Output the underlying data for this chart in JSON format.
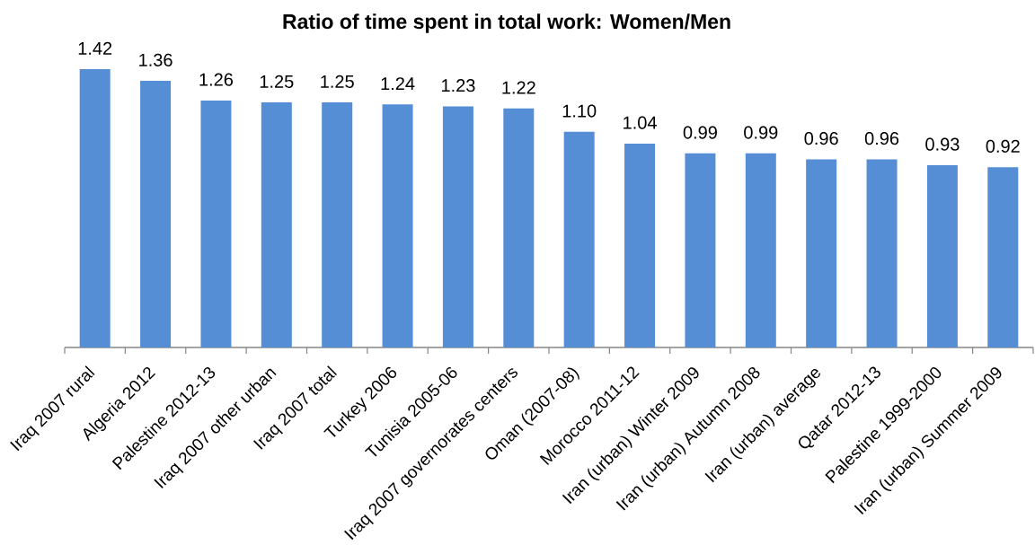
{
  "chart_data": {
    "type": "bar",
    "title": "Ratio of time spent in total work: Women/Men",
    "categories": [
      "Iraq 2007 rural",
      "Algeria 2012",
      "Palestine 2012-13",
      "Iraq 2007 other urban",
      "Iraq 2007 total",
      "Turkey 2006",
      "Tunisia 2005-06",
      "Iraq 2007 governorates centers",
      "Oman (2007-08)",
      "Morocco 2011-12",
      "Iran (urban) Winter 2009",
      "Iran (urban) Autumn 2008",
      "Iran (urban) average",
      "Qatar 2012-13",
      "Palestine 1999-2000",
      "Iran (urban) Summer 2009"
    ],
    "values": [
      1.42,
      1.36,
      1.26,
      1.25,
      1.25,
      1.24,
      1.23,
      1.22,
      1.1,
      1.04,
      0.99,
      0.99,
      0.96,
      0.96,
      0.93,
      0.92
    ],
    "value_labels": [
      "1.42",
      "1.36",
      "1.26",
      "1.25",
      "1.25",
      "1.24",
      "1.23",
      "1.22",
      "1.10",
      "1.04",
      "0.99",
      "0.99",
      "0.96",
      "0.96",
      "0.93",
      "0.92"
    ],
    "color": "#558ed5"
  }
}
